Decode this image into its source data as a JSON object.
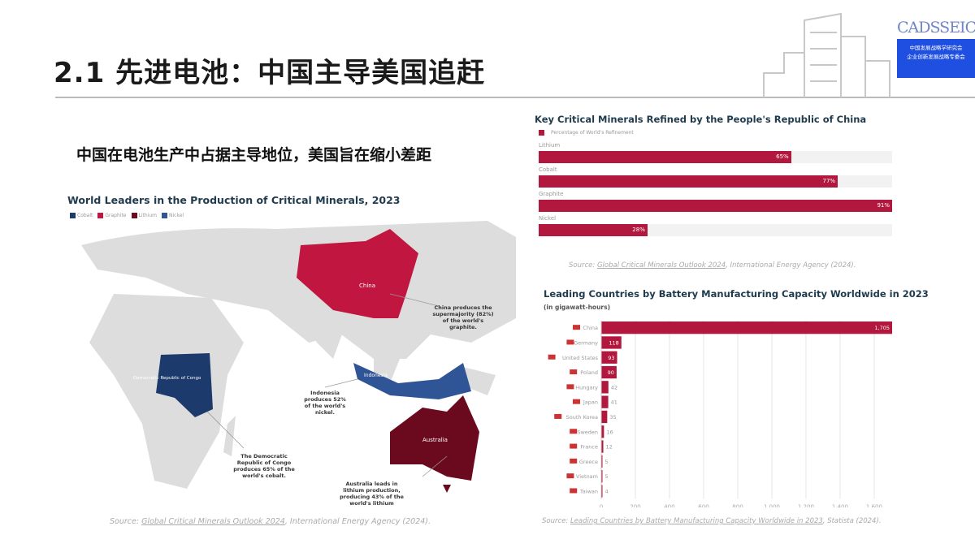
{
  "header": {
    "title": "2.1 先进电池：中国主导美国追赶",
    "logo_text": "CADSSEIC",
    "logo_sub1": "中国发展战略学研究会",
    "logo_sub2": "企业创新发展战略专委会"
  },
  "subtitle": "中国在电池生产中占据主导地位，美国旨在缩小差距",
  "map": {
    "title": "World Leaders in the Production of Critical Minerals, 2023",
    "legend": [
      {
        "name": "Cobalt",
        "color": "#1c3a6b"
      },
      {
        "name": "Graphite",
        "color": "#c0163f"
      },
      {
        "name": "Lithium",
        "color": "#6b0a1f"
      },
      {
        "name": "Nickel",
        "color": "#2f5597"
      }
    ],
    "labels": {
      "china": "China",
      "drc": "Democratic Republic of Congo",
      "australia": "Australia",
      "indonesia": "Indonesia"
    },
    "annotations": {
      "china": "China produces the supermajority (82%) of the world's graphite.",
      "indonesia": "Indonesia produces 52% of the world's nickel.",
      "drc": "The Democratic Republic of Congo produces 65% of the world's cobalt.",
      "australia": "Australia leads in lithium production, producing 43% of the world's lithium"
    },
    "source_prefix": "Source: ",
    "source_link": "Global Critical Minerals Outlook 2024",
    "source_suffix": ", International Energy Agency (2024)."
  },
  "chart_data": [
    {
      "type": "bar",
      "title": "Key Critical Minerals Refined by the People's Republic of China",
      "legend": "Percentage of World's Refinement",
      "color": "#b2183d",
      "xlim": [
        0,
        100
      ],
      "categories": [
        "Lithium",
        "Cobalt",
        "Graphite",
        "Nickel"
      ],
      "values": [
        65,
        77,
        91,
        28
      ],
      "data_labels": [
        "65%",
        "77%",
        "91%",
        "28%"
      ],
      "source_prefix": "Source: ",
      "source_link": "Global Critical Minerals Outlook 2024",
      "source_suffix": ", International Energy Agency (2024)."
    },
    {
      "type": "bar",
      "title": "Leading Countries by Battery Manufacturing Capacity Worldwide in 2023",
      "subtitle": "(in gigawatt-hours)",
      "color": "#b2183d",
      "xlim": [
        0,
        1705
      ],
      "grid": true,
      "categories": [
        "China",
        "Germany",
        "United States",
        "Poland",
        "Hungary",
        "Japan",
        "South Korea",
        "Sweden",
        "France",
        "Greece",
        "Vietnam",
        "Taiwan"
      ],
      "values": [
        1705,
        118,
        93,
        90,
        42,
        41,
        35,
        16,
        12,
        5,
        5,
        4
      ],
      "data_labels": [
        "1,705",
        "118",
        "93",
        "90",
        "42",
        "41",
        "35",
        "16",
        "12",
        "5",
        "5",
        "4"
      ],
      "xticks": [
        "0",
        "200",
        "400",
        "600",
        "800",
        "1,000",
        "1,200",
        "1,400",
        "1,600"
      ],
      "source_prefix": "Source: ",
      "source_link": "Leading Countries by Battery Manufacturing Capacity Worldwide in 2023",
      "source_suffix": ", Statista (2024)."
    }
  ]
}
